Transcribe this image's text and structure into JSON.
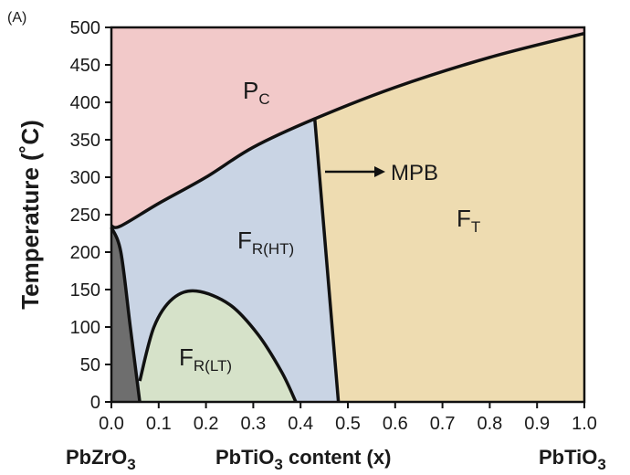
{
  "chart_data": {
    "type": "area",
    "panel_label": "(A)",
    "ylabel": "Temperature (˚C)",
    "xlim": [
      0.0,
      1.0
    ],
    "ylim": [
      0,
      500
    ],
    "x_ticks": [
      "0.0",
      "0.1",
      "0.2",
      "0.3",
      "0.4",
      "0.5",
      "0.6",
      "0.7",
      "0.8",
      "0.9",
      "1.0"
    ],
    "y_ticks": [
      "0",
      "50",
      "100",
      "150",
      "200",
      "250",
      "300",
      "350",
      "400",
      "450",
      "500"
    ],
    "bottom_labels": {
      "left": {
        "main": "PbZrO",
        "sub": "3"
      },
      "center": {
        "pre": "PbTiO",
        "sub": "3",
        "post": " content (x)"
      },
      "right": {
        "main": "PbTiO",
        "sub": "3"
      }
    },
    "phases": [
      {
        "name": "P",
        "sub": "C",
        "color": "#f2c9c9"
      },
      {
        "name": "F",
        "sub": "T",
        "color": "#eedcb1"
      },
      {
        "name": "F",
        "sub": "R(HT)",
        "color": "#c9d4e4"
      },
      {
        "name": "F",
        "sub": "R(LT)",
        "color": "#d6e2c9"
      },
      {
        "name": "",
        "sub": "",
        "color": "#6e6e6e"
      }
    ],
    "annotation": "MPB",
    "boundaries": {
      "curie": {
        "x": [
          0.0,
          0.02,
          0.1,
          0.2,
          0.3,
          0.43,
          0.6,
          0.8,
          1.0
        ],
        "y": [
          235,
          235,
          265,
          300,
          340,
          378,
          420,
          460,
          492
        ]
      },
      "mpb": {
        "x": [
          0.43,
          0.48
        ],
        "y": [
          378,
          0
        ]
      },
      "antiferro": {
        "x": [
          0.0,
          0.02,
          0.04,
          0.06
        ],
        "y": [
          233,
          200,
          100,
          0
        ]
      },
      "rhombo_lt": {
        "x": [
          0.06,
          0.09,
          0.13,
          0.18,
          0.25,
          0.31,
          0.36,
          0.39
        ],
        "y": [
          28,
          100,
          138,
          148,
          130,
          90,
          40,
          0
        ]
      }
    }
  }
}
